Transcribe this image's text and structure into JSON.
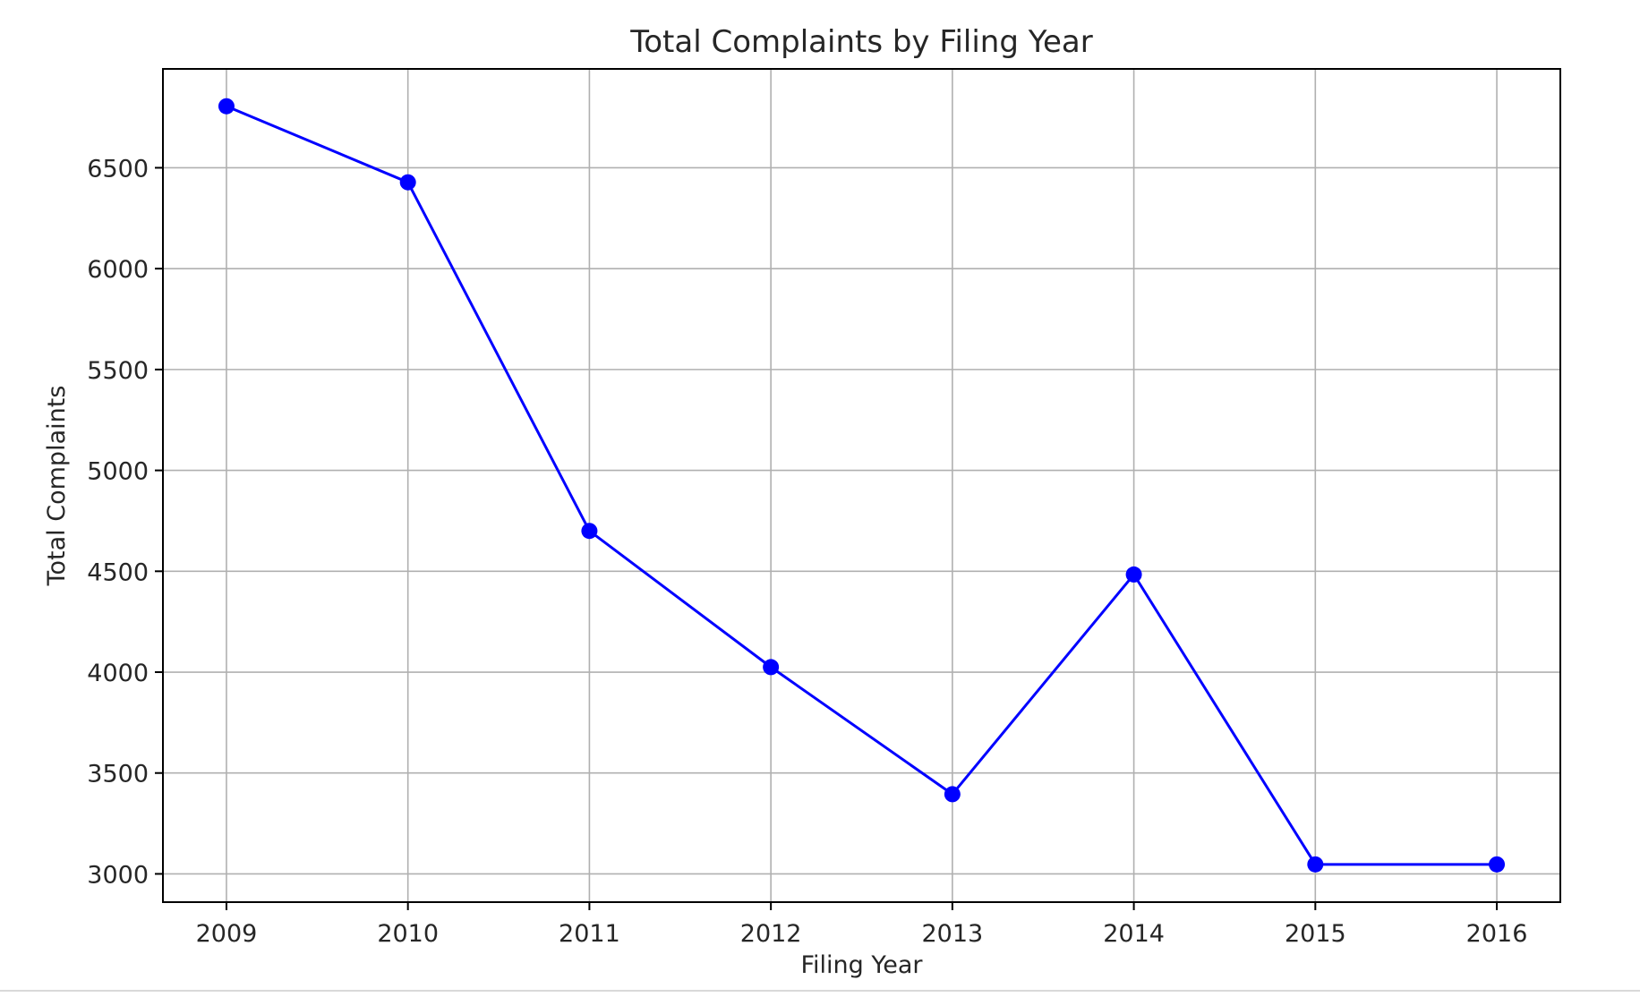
{
  "chart_data": {
    "type": "line",
    "title": "Total Complaints by Filing Year",
    "xlabel": "Filing Year",
    "ylabel": "Total Complaints",
    "x": [
      2009,
      2010,
      2011,
      2012,
      2013,
      2014,
      2015,
      2016
    ],
    "x_tick_labels": [
      "2009",
      "2010",
      "2011",
      "2012",
      "2013",
      "2014",
      "2015",
      "2016"
    ],
    "y_ticks": [
      3000,
      3500,
      4000,
      4500,
      5000,
      5500,
      6000,
      6500
    ],
    "y_tick_labels": [
      "3000",
      "3500",
      "4000",
      "4500",
      "5000",
      "5500",
      "6000",
      "6500"
    ],
    "xlim": [
      2008.65,
      2016.35
    ],
    "ylim": [
      2860,
      6990
    ],
    "grid": true,
    "marker": "circle",
    "series": [
      {
        "color": "#0000ff",
        "values": [
          6805,
          6428,
          4700,
          4025,
          3395,
          4484,
          3047,
          3047
        ]
      }
    ]
  }
}
